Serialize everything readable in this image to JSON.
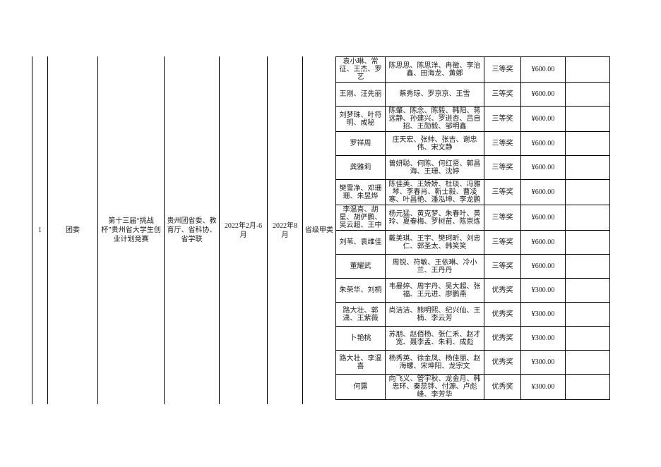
{
  "colors": {
    "background": "#ffffff",
    "border": "#000000",
    "text": "#1c1c1c"
  },
  "table": {
    "merged": {
      "index": "1",
      "department": "团委",
      "competition": "第十三届“挑战杯”贵州省大学生创业计划竞赛",
      "organizers": "贵州团省委、教育厅、省科协、省学联",
      "period": "2022年2月-6月",
      "award_date": "2022年8月",
      "level": "省级甲类"
    },
    "rows": [
      {
        "leaders": "袁小琳、常征、王杰、罗艺",
        "members": "陈思思、陈思洋、冉徵、李治鑫、田海龙、黄娜",
        "award": "三等奖",
        "amount": "¥600.00",
        "remark": ""
      },
      {
        "leaders": "王刚、汪先丽",
        "members": "蔡秀琼、罗京京、王雪",
        "award": "三等奖",
        "amount": "¥600.00",
        "remark": ""
      },
      {
        "leaders": "刘梦珠、叶符明、成秘",
        "members": "陈肇、陈念、陈毅、韩阳、蒋远静、孙建兴、罗进杏、吕自招、王勋毅、邹明鑫",
        "award": "三等奖",
        "amount": "¥600.00",
        "remark": ""
      },
      {
        "leaders": "罗祥周",
        "members": "庄天宏、张帅、张吉、谢忠伟、宋文静",
        "award": "三等奖",
        "amount": "¥600.00",
        "remark": ""
      },
      {
        "leaders": "龚雅莉",
        "members": "曾妍聪、何陈、何红贤、郭昌海、王珊、沈婷",
        "award": "三等奖",
        "amount": "¥600.00",
        "remark": ""
      },
      {
        "leaders": "樊雪净、邓珊珊、朱昱烨",
        "members": "陈佳美、王娇娇、杜琰、冯雅琴、李春肖、靳士毅、曹凌寒、叶昌艳、潘泓坤、李龙鹏",
        "award": "三等奖",
        "amount": "¥600.00",
        "remark": ""
      },
      {
        "leaders": "李温喜、胡星、胡俨鹏、吴云超、王中",
        "members": "杨元猛、黄克梦、朱春叶、黄玲、夏春梅、罗树苗、陈崇炼",
        "award": "三等奖",
        "amount": "¥600.00",
        "remark": ""
      },
      {
        "leaders": "刘苇、袁维佳",
        "members": "戴美琪、王宇、樊珂昕、刘忠仁、郭圣太、韩笑笑",
        "award": "三等奖",
        "amount": "¥600.00",
        "remark": ""
      },
      {
        "leaders": "董耀武",
        "members": "周锐、符敏、王依琳、冷小兰、王丹丹",
        "award": "三等奖",
        "amount": "¥600.00",
        "remark": ""
      },
      {
        "leaders": "朱荣华、刘桐",
        "members": "韦曼婷、周宇丹、吴大超、张福、王元进、廖鹏燕",
        "award": "优秀奖",
        "amount": "¥300.00",
        "remark": ""
      },
      {
        "leaders": "路大壮、郭潇、王紫薇",
        "members": "尚洁洁、熊明熙、纪兴仙、王楠、李云芳",
        "award": "优秀奖",
        "amount": "¥300.00",
        "remark": ""
      },
      {
        "leaders": "卜艳桃",
        "members": "苏朋、赵佰杨、张仁禾、赵才宽、聂李孟、朱莉、成彪",
        "award": "优秀奖",
        "amount": "¥300.00",
        "remark": ""
      },
      {
        "leaders": "路大壮、李温喜",
        "members": "杨秀英、徐金凤、杨佳丽、赵海螺、宋坤阳、龙宗文",
        "award": "优秀奖",
        "amount": "¥300.00",
        "remark": ""
      },
      {
        "leaders": "何露",
        "members": "向飞义、管宇秋、龙金月、韩忠环、秦蕊铧、付源、卢彪峰、李芳华",
        "award": "优秀奖",
        "amount": "¥300.00",
        "remark": ""
      }
    ]
  }
}
